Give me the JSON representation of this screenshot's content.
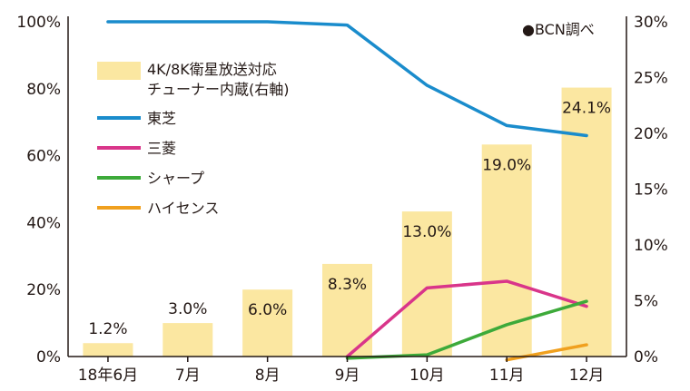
{
  "chart_data": {
    "type": "bar+line",
    "source_note": "●BCN調べ",
    "categories": [
      "18年6月",
      "7月",
      "8月",
      "9月",
      "10月",
      "11月",
      "12月"
    ],
    "bar_series": {
      "name": "4K/8K衛星放送対応チューナー内蔵(右軸)",
      "name_lines": [
        "4K/8K衛星放送対応",
        "チューナー内蔵(右軸)"
      ],
      "axis": "right",
      "values": [
        1.2,
        3.0,
        6.0,
        8.3,
        13.0,
        19.0,
        24.1
      ],
      "labels": [
        "1.2%",
        "3.0%",
        "6.0%",
        "8.3%",
        "13.0%",
        "19.0%",
        "24.1%"
      ],
      "color": "#fbe7a1"
    },
    "line_series": [
      {
        "name": "東芝",
        "color": "#1a8ccc",
        "axis": "left",
        "values": [
          100,
          100,
          100,
          99,
          81,
          69,
          66
        ]
      },
      {
        "name": "三菱",
        "color": "#d9358a",
        "axis": "left",
        "values": [
          null,
          null,
          null,
          0,
          20.5,
          22.5,
          15
        ]
      },
      {
        "name": "シャープ",
        "color": "#3daa3a",
        "axis": "left",
        "values": [
          null,
          null,
          null,
          -0.5,
          0.5,
          9.5,
          16.5
        ]
      },
      {
        "name": "ハイセンス",
        "color": "#f0a01e",
        "axis": "left",
        "values": [
          null,
          null,
          null,
          null,
          null,
          -1,
          3.5
        ]
      }
    ],
    "left_axis": {
      "ylim": [
        0,
        100
      ],
      "ticks": [
        "0%",
        "20%",
        "40%",
        "60%",
        "80%",
        "100%"
      ]
    },
    "right_axis": {
      "ylim": [
        0,
        30
      ],
      "ticks": [
        "0%",
        "5%",
        "10%",
        "15%",
        "20%",
        "25%",
        "30%"
      ]
    },
    "grid": false,
    "legend_position": "top-left"
  }
}
